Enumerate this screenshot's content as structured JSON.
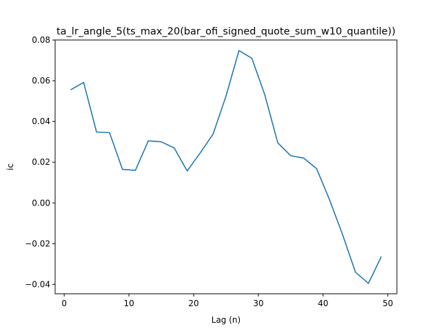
{
  "chart_data": {
    "type": "line",
    "title": "ta_lr_angle_5(ts_max_20(bar_ofi_signed_quote_sum_w10_quantile))",
    "xlabel": "Lag (n)",
    "ylabel": "ic",
    "xlim": [
      -1.4,
      51.4
    ],
    "ylim": [
      -0.0446,
      0.08
    ],
    "x_ticks": [
      0,
      10,
      20,
      30,
      40,
      50
    ],
    "y_ticks": [
      -0.04,
      -0.02,
      0.0,
      0.02,
      0.04,
      0.06,
      0.08
    ],
    "y_tick_labels": [
      "−0.04",
      "−0.02",
      "0.00",
      "0.02",
      "0.04",
      "0.06",
      "0.08"
    ],
    "grid": false,
    "series": [
      {
        "color": "#1f77b4",
        "x": [
          1,
          3,
          5,
          7,
          9,
          11,
          13,
          15,
          17,
          19,
          21,
          23,
          25,
          27,
          29,
          31,
          33,
          35,
          37,
          39,
          41,
          43,
          45,
          47,
          49
        ],
        "y": [
          0.0555,
          0.0592,
          0.0348,
          0.0345,
          0.0165,
          0.016,
          0.0305,
          0.03,
          0.027,
          0.0157,
          0.0245,
          0.0338,
          0.0525,
          0.0748,
          0.071,
          0.053,
          0.0295,
          0.0232,
          0.022,
          0.0168,
          0.0015,
          -0.0155,
          -0.034,
          -0.0395,
          -0.0263
        ]
      }
    ]
  }
}
